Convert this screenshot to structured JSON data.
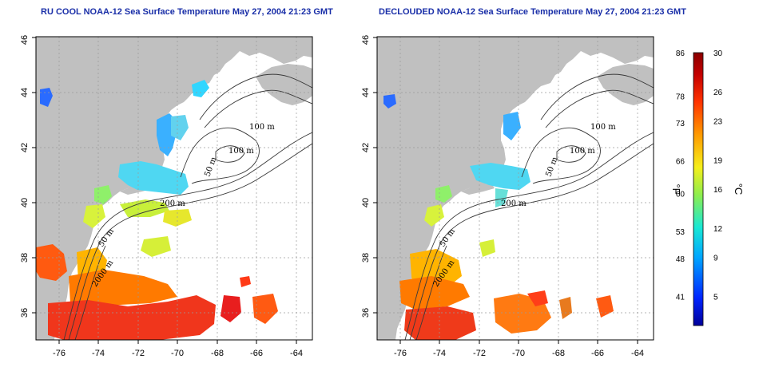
{
  "panels": [
    {
      "title": "RU COOL NOAA-12 Sea Surface Temperature May 27, 2004 21:23 GMT",
      "x_ticks": [
        "-76",
        "-74",
        "-72",
        "-70",
        "-68",
        "-66",
        "-64"
      ],
      "y_ticks": [
        "36",
        "38",
        "40",
        "42",
        "44",
        "46"
      ],
      "contour_labels": [
        "100 m",
        "100 m",
        "50 m",
        "200 m",
        "50 m",
        "2000 m"
      ]
    },
    {
      "title": "DECLOUDED NOAA-12 Sea Surface Temperature May 27, 2004 21:23 GMT",
      "x_ticks": [
        "-76",
        "-74",
        "-72",
        "-70",
        "-68",
        "-66",
        "-64"
      ],
      "y_ticks": [
        "36",
        "38",
        "40",
        "42",
        "44",
        "46"
      ],
      "contour_labels": [
        "100 m",
        "100 m",
        "50 m",
        "200 m",
        "50 m",
        "2000 m"
      ]
    }
  ],
  "colorbar": {
    "f_label": "°F",
    "c_label": "°C",
    "f_ticks": [
      "86",
      "78",
      "73",
      "66",
      "60",
      "53",
      "48",
      "41"
    ],
    "c_ticks": [
      "30",
      "26",
      "23",
      "19",
      "16",
      "12",
      "9",
      "5"
    ],
    "c_range": [
      2,
      30
    ],
    "colors": [
      "#00009a",
      "#0024ff",
      "#00a6ff",
      "#19e8d4",
      "#8fee4c",
      "#f5ef1b",
      "#ff9a00",
      "#ff3300",
      "#c40000",
      "#8a0000"
    ]
  },
  "map_extent": {
    "lon": [
      -77,
      -63
    ],
    "lat": [
      35,
      46
    ]
  },
  "land_color": "#c0c0c0"
}
